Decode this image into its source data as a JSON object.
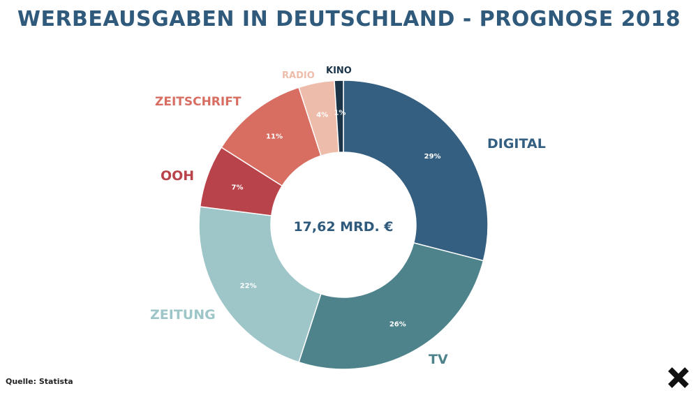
{
  "title": "WERBEAUSGABEN IN DEUTSCHLAND - PROGNOSE 2018",
  "source": "Quelle: Statista",
  "close_icon": "close-x-icon",
  "chart_data": {
    "type": "pie",
    "style": "donut",
    "center_label": "17,62 MRD. €",
    "slices": [
      {
        "label": "DIGITAL",
        "value": 29,
        "value_label": "29%",
        "color": "#345f80",
        "label_color": "#345f80"
      },
      {
        "label": "TV",
        "value": 26,
        "value_label": "26%",
        "color": "#4e838c",
        "label_color": "#4e838c"
      },
      {
        "label": "ZEITUNG",
        "value": 22,
        "value_label": "22%",
        "color": "#9ec6c8",
        "label_color": "#9ec6c8"
      },
      {
        "label": "OOH",
        "value": 7,
        "value_label": "7%",
        "color": "#b9434a",
        "label_color": "#b9434a"
      },
      {
        "label": "ZEITSCHRIFT",
        "value": 11,
        "value_label": "11%",
        "color": "#d86e62",
        "label_color": "#d86e62"
      },
      {
        "label": "RADIO",
        "value": 4,
        "value_label": "4%",
        "color": "#eebcaa",
        "label_color": "#eebcaa"
      },
      {
        "label": "KINO",
        "value": 1,
        "value_label": "1%",
        "color": "#1b3448",
        "label_color": "#1b3448"
      }
    ]
  }
}
